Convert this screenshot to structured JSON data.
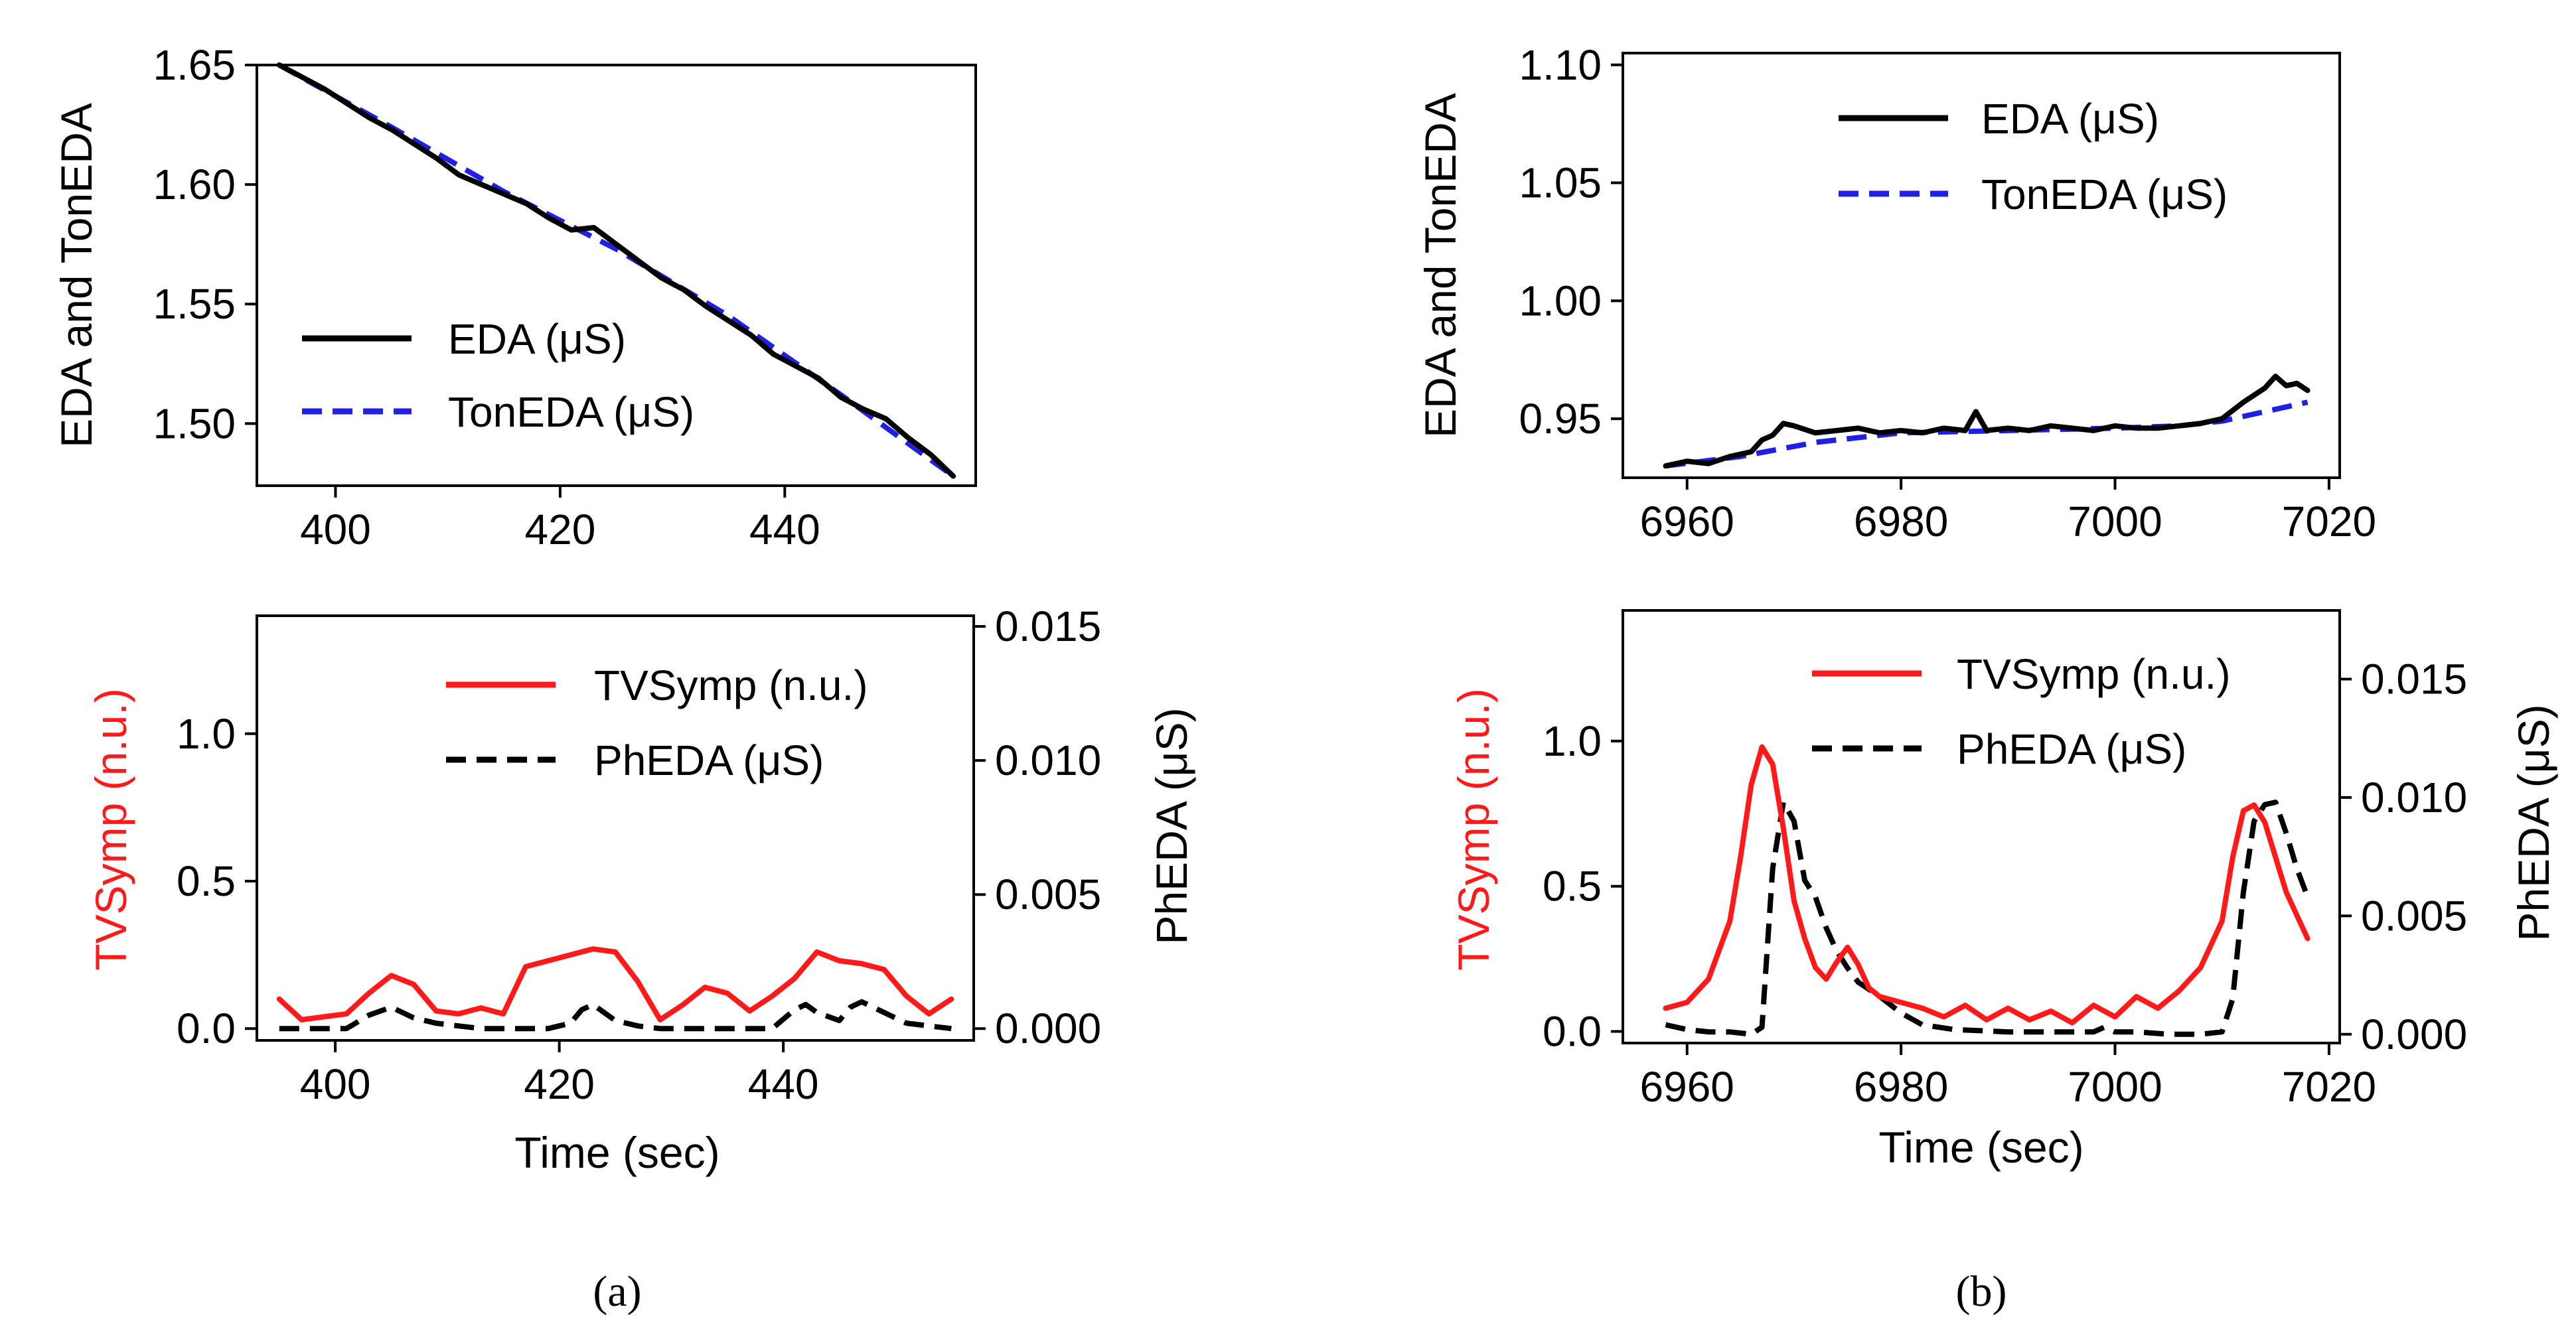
{
  "colors": {
    "eda": "#000000",
    "ton": "#1f1fe6",
    "tv": "#ff1a1a",
    "ph": "#000000"
  },
  "captions": {
    "a": "(a)",
    "b": "(b)"
  },
  "chart_data": [
    {
      "id": "a_top",
      "type": "line",
      "xlim": [
        393,
        457
      ],
      "ylim": [
        1.474,
        1.65
      ],
      "xticks": [
        400,
        420,
        440
      ],
      "yticks": [
        1.5,
        1.55,
        1.6,
        1.65
      ],
      "xtick_labels": [
        "400",
        "420",
        "440"
      ],
      "ytick_labels": [
        "1.50",
        "1.55",
        "1.60",
        "1.65"
      ],
      "xlabel": "",
      "ylabel": "EDA and TonEDA",
      "legend_position": "lower-left",
      "series": [
        {
          "name": "EDA (μS)",
          "style": "solid",
          "color_key": "eda",
          "x": [
            395,
            397,
            399,
            401,
            403,
            405,
            407,
            409,
            411,
            413,
            415,
            417,
            419,
            421,
            423,
            425,
            427,
            429,
            431,
            433,
            435,
            437,
            439,
            441,
            443,
            445,
            447,
            449,
            451,
            453,
            455
          ],
          "y": [
            1.65,
            1.645,
            1.64,
            1.634,
            1.628,
            1.623,
            1.617,
            1.611,
            1.604,
            1.6,
            1.596,
            1.592,
            1.586,
            1.581,
            1.582,
            1.575,
            1.568,
            1.561,
            1.556,
            1.549,
            1.543,
            1.537,
            1.529,
            1.524,
            1.519,
            1.511,
            1.506,
            1.502,
            1.494,
            1.487,
            1.478
          ]
        },
        {
          "name": "TonEDA (μS)",
          "style": "dashed",
          "color_key": "ton",
          "x": [
            395,
            405,
            415,
            425,
            435,
            445,
            455
          ],
          "y": [
            1.65,
            1.624,
            1.597,
            1.573,
            1.545,
            1.512,
            1.478
          ]
        }
      ]
    },
    {
      "id": "b_top",
      "type": "line",
      "xlim": [
        6954,
        7021
      ],
      "ylim": [
        0.925,
        1.105
      ],
      "xticks": [
        6960,
        6980,
        7000,
        7020
      ],
      "yticks": [
        0.95,
        1.0,
        1.05,
        1.1
      ],
      "xtick_labels": [
        "6960",
        "6980",
        "7000",
        "7020"
      ],
      "ytick_labels": [
        "0.95",
        "1.00",
        "1.05",
        "1.10"
      ],
      "xlabel": "",
      "ylabel": "EDA and TonEDA",
      "legend_position": "upper-right",
      "series": [
        {
          "name": "EDA (μS)",
          "style": "solid",
          "color_key": "eda",
          "x": [
            6958,
            6960,
            6962,
            6964,
            6966,
            6967,
            6968,
            6969,
            6970,
            6972,
            6974,
            6976,
            6978,
            6980,
            6982,
            6984,
            6986,
            6987,
            6988,
            6990,
            6992,
            6994,
            6996,
            6998,
            7000,
            7002,
            7004,
            7006,
            7008,
            7010,
            7012,
            7014,
            7015,
            7016,
            7017,
            7018
          ],
          "y": [
            0.93,
            0.932,
            0.931,
            0.934,
            0.936,
            0.941,
            0.943,
            0.948,
            0.947,
            0.944,
            0.945,
            0.946,
            0.944,
            0.945,
            0.944,
            0.946,
            0.945,
            0.953,
            0.945,
            0.946,
            0.945,
            0.947,
            0.946,
            0.945,
            0.947,
            0.946,
            0.946,
            0.947,
            0.948,
            0.95,
            0.957,
            0.963,
            0.968,
            0.964,
            0.965,
            0.962
          ]
        },
        {
          "name": "TonEDA (μS)",
          "style": "dashed",
          "color_key": "ton",
          "x": [
            6958,
            6965,
            6972,
            6980,
            6990,
            7000,
            7006,
            7010,
            7014,
            7018
          ],
          "y": [
            0.93,
            0.934,
            0.94,
            0.944,
            0.945,
            0.946,
            0.947,
            0.949,
            0.953,
            0.957
          ]
        }
      ]
    },
    {
      "id": "a_bottom",
      "type": "line",
      "xlim": [
        393,
        457
      ],
      "ylim": [
        -0.04,
        1.4
      ],
      "y2lim": [
        -0.00044,
        0.0154
      ],
      "xticks": [
        400,
        420,
        440
      ],
      "yticks": [
        0.0,
        0.5,
        1.0
      ],
      "y2ticks": [
        0.0,
        0.005,
        0.01,
        0.015
      ],
      "xtick_labels": [
        "400",
        "420",
        "440"
      ],
      "ytick_labels": [
        "0.0",
        "0.5",
        "1.0"
      ],
      "y2tick_labels": [
        "0.000",
        "0.005",
        "0.010",
        "0.015"
      ],
      "xlabel": "Time (sec)",
      "ylabel": "TVSymp (n.u.)",
      "y2label": "PhEDA (μS)",
      "legend_position": "upper-right",
      "series": [
        {
          "name": "TVSymp (n.u.)",
          "style": "solid",
          "color_key": "tv",
          "axis": "left",
          "x": [
            395,
            397,
            399,
            401,
            403,
            405,
            407,
            409,
            411,
            413,
            415,
            417,
            419,
            421,
            423,
            425,
            427,
            429,
            431,
            433,
            435,
            437,
            439,
            441,
            443,
            445,
            447,
            449,
            451,
            453,
            455
          ],
          "y": [
            0.1,
            0.03,
            0.04,
            0.05,
            0.12,
            0.18,
            0.15,
            0.06,
            0.05,
            0.07,
            0.05,
            0.21,
            0.23,
            0.25,
            0.27,
            0.26,
            0.16,
            0.03,
            0.08,
            0.14,
            0.12,
            0.06,
            0.11,
            0.17,
            0.26,
            0.23,
            0.22,
            0.2,
            0.11,
            0.05,
            0.1
          ]
        },
        {
          "name": "PhEDA (μS)",
          "style": "dashed",
          "color_key": "ph",
          "axis": "right",
          "x": [
            395,
            399,
            401,
            403,
            405,
            407,
            409,
            411,
            413,
            415,
            417,
            419,
            421,
            422,
            423,
            424,
            425,
            427,
            429,
            431,
            433,
            435,
            437,
            439,
            441,
            442,
            443,
            445,
            446,
            447,
            449,
            451,
            453,
            455
          ],
          "y": [
            0.0,
            0.0,
            0.0,
            0.0005,
            0.0008,
            0.0004,
            0.0002,
            0.0001,
            0.0,
            0.0,
            0.0,
            0.0,
            0.0002,
            0.0007,
            0.0009,
            0.0006,
            0.0003,
            0.0001,
            0.0,
            0.0,
            0.0,
            0.0,
            0.0,
            0.0,
            0.0007,
            0.0009,
            0.0006,
            0.0003,
            0.0008,
            0.001,
            0.0006,
            0.0002,
            0.0001,
            0.0
          ]
        }
      ]
    },
    {
      "id": "b_bottom",
      "type": "line",
      "xlim": [
        6954,
        7021
      ],
      "ylim": [
        -0.04,
        1.45
      ],
      "y2lim": [
        -0.00037,
        0.0179
      ],
      "xticks": [
        6960,
        6980,
        7000,
        7020
      ],
      "yticks": [
        0.0,
        0.5,
        1.0
      ],
      "y2ticks": [
        0.0,
        0.005,
        0.01,
        0.015
      ],
      "xtick_labels": [
        "6960",
        "6980",
        "7000",
        "7020"
      ],
      "ytick_labels": [
        "0.0",
        "0.5",
        "1.0"
      ],
      "y2tick_labels": [
        "0.000",
        "0.005",
        "0.010",
        "0.015"
      ],
      "xlabel": "Time (sec)",
      "ylabel": "TVSymp (n.u.)",
      "y2label": "PhEDA (μS)",
      "legend_position": "upper-right",
      "series": [
        {
          "name": "TVSymp (n.u.)",
          "style": "solid",
          "color_key": "tv",
          "axis": "left",
          "x": [
            6958,
            6960,
            6962,
            6964,
            6965,
            6966,
            6967,
            6968,
            6969,
            6970,
            6971,
            6972,
            6973,
            6974,
            6975,
            6976,
            6977,
            6978,
            6980,
            6982,
            6984,
            6986,
            6988,
            6990,
            6992,
            6994,
            6996,
            6998,
            7000,
            7002,
            7004,
            7006,
            7008,
            7010,
            7011,
            7012,
            7013,
            7014,
            7015,
            7016,
            7017,
            7018
          ],
          "y": [
            0.08,
            0.1,
            0.18,
            0.38,
            0.6,
            0.85,
            0.98,
            0.92,
            0.7,
            0.45,
            0.32,
            0.22,
            0.18,
            0.24,
            0.29,
            0.23,
            0.15,
            0.12,
            0.1,
            0.08,
            0.05,
            0.09,
            0.04,
            0.08,
            0.04,
            0.07,
            0.03,
            0.09,
            0.05,
            0.12,
            0.08,
            0.14,
            0.22,
            0.38,
            0.6,
            0.76,
            0.78,
            0.72,
            0.6,
            0.48,
            0.4,
            0.32
          ]
        },
        {
          "name": "PhEDA (μS)",
          "style": "dashed",
          "color_key": "ph",
          "axis": "right",
          "x": [
            6958,
            6960,
            6962,
            6964,
            6966,
            6967,
            6968,
            6969,
            6970,
            6971,
            6972,
            6973,
            6974,
            6975,
            6976,
            6978,
            6980,
            6982,
            6985,
            6990,
            6995,
            6998,
            6999,
            7000,
            7002,
            7005,
            7008,
            7010,
            7011,
            7012,
            7013,
            7014,
            7015,
            7016,
            7017,
            7018
          ],
          "y": [
            0.0004,
            0.0002,
            0.0001,
            0.0001,
            0.0,
            0.0003,
            0.007,
            0.0098,
            0.009,
            0.0065,
            0.0058,
            0.0045,
            0.0035,
            0.0028,
            0.0022,
            0.0016,
            0.0009,
            0.0004,
            0.0002,
            0.0001,
            0.0001,
            0.0001,
            0.0003,
            0.0001,
            0.0001,
            0.0,
            0.0,
            0.0001,
            0.0015,
            0.006,
            0.009,
            0.0097,
            0.0098,
            0.0085,
            0.007,
            0.0058
          ]
        }
      ]
    }
  ]
}
